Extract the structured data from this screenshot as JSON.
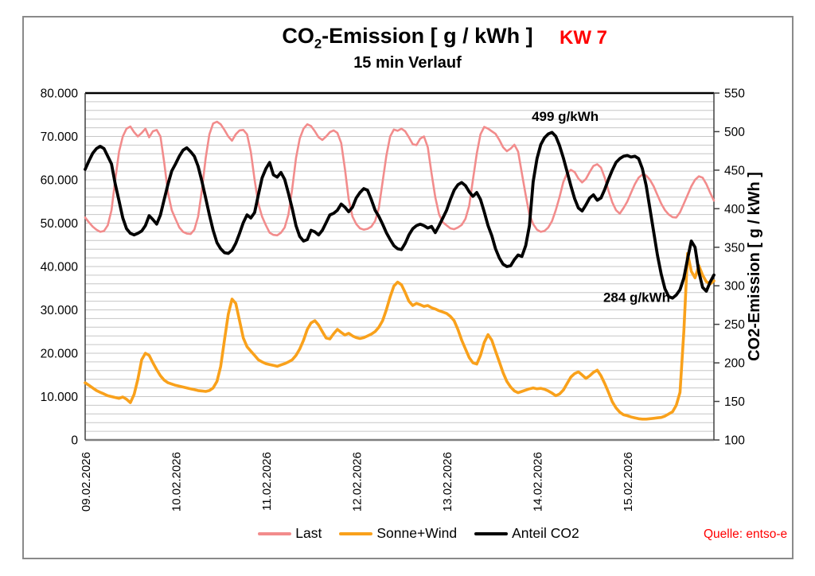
{
  "header": {
    "title_prefix": "CO",
    "title_sub": "2",
    "title_suffix": "-Emission [ g / kWh ]",
    "kw_label": "KW 7",
    "subtitle": "15 min Verlauf"
  },
  "source": "Quelle: entso-e",
  "colors": {
    "grid": "#c6c6c6",
    "plot_top_border": "#000000",
    "plot_bottom_axis": "#7f7f7f",
    "plot_side_axis": "#404040",
    "kw_text": "#ff0000",
    "source_text": "#ff0000"
  },
  "chart_data": {
    "type": "line",
    "note": "Curves digitized from 15-min chart at 1-hour resolution, 168 points per series, 09.02.2026 00:00 - 15.02.2026 24:00",
    "x_tick_labels": [
      "09.02.2026",
      "10.02.2026",
      "11.02.2026",
      "12.02.2026",
      "13.02.2026",
      "14.02.2026",
      "15.02.2026"
    ],
    "left_axis": {
      "min": 0,
      "max": 80000,
      "tick_step": 10000,
      "grid_step": 2000,
      "tick_labels": [
        "0",
        "10.000",
        "20.000",
        "30.000",
        "40.000",
        "50.000",
        "60.000",
        "70.000",
        "80.000"
      ]
    },
    "right_axis": {
      "min": 100,
      "max": 550,
      "tick_step": 50,
      "label": "CO2-Emission [ g / kWh ]"
    },
    "legend_position": "bottom",
    "grid": "horizontal-only",
    "series": [
      {
        "name": "Last",
        "axis": "left",
        "color": "#f28c8c",
        "values": [
          51300,
          50200,
          49200,
          48500,
          48000,
          48200,
          49500,
          53000,
          60000,
          66500,
          70000,
          71800,
          72300,
          71000,
          70000,
          70800,
          71800,
          69800,
          71200,
          71500,
          70000,
          64000,
          57000,
          53000,
          51000,
          49000,
          48000,
          47600,
          47500,
          48500,
          51500,
          57500,
          65000,
          70500,
          73000,
          73400,
          72800,
          71500,
          70000,
          69000,
          70500,
          71400,
          71500,
          70500,
          66500,
          60000,
          54500,
          51500,
          49500,
          47800,
          47300,
          47200,
          47800,
          49000,
          52000,
          58000,
          65000,
          69500,
          71800,
          72800,
          72400,
          71200,
          69800,
          69200,
          70000,
          71000,
          71400,
          70800,
          68500,
          62500,
          55500,
          51500,
          49800,
          48800,
          48500,
          48700,
          49200,
          50500,
          53500,
          59500,
          65500,
          70000,
          71600,
          71300,
          71800,
          71200,
          69800,
          68200,
          68000,
          69500,
          70000,
          67500,
          61500,
          56000,
          52000,
          50200,
          49500,
          48800,
          48600,
          49000,
          49600,
          51000,
          54000,
          60000,
          66000,
          70500,
          72200,
          71800,
          71200,
          70600,
          69200,
          67500,
          66600,
          67200,
          68100,
          66500,
          61500,
          56500,
          52000,
          49800,
          48500,
          48000,
          48200,
          49000,
          50500,
          53000,
          56000,
          59500,
          61500,
          62300,
          61800,
          60300,
          59400,
          60200,
          61800,
          63200,
          63600,
          62800,
          60500,
          57500,
          54800,
          53000,
          52200,
          53500,
          55000,
          57000,
          59000,
          60500,
          61200,
          61000,
          60000,
          58500,
          56500,
          54500,
          53000,
          52000,
          51400,
          51300,
          52500,
          54500,
          56500,
          58500,
          60000,
          60800,
          60500,
          59000,
          57000,
          55200
        ]
      },
      {
        "name": "Sonne+Wind",
        "axis": "left",
        "color": "#f9a11b",
        "values": [
          13200,
          12600,
          12000,
          11400,
          11000,
          10600,
          10200,
          10000,
          9800,
          9600,
          9900,
          9400,
          8600,
          10500,
          14000,
          18500,
          20000,
          19500,
          17800,
          16200,
          14800,
          13800,
          13200,
          12900,
          12600,
          12400,
          12200,
          12000,
          11800,
          11600,
          11400,
          11300,
          11200,
          11400,
          12000,
          13500,
          17000,
          23000,
          29000,
          32500,
          31500,
          27500,
          23500,
          21500,
          20500,
          19500,
          18500,
          18000,
          17600,
          17400,
          17200,
          17000,
          17300,
          17600,
          18000,
          18500,
          19500,
          21000,
          23000,
          25500,
          27000,
          27500,
          26500,
          25000,
          23500,
          23300,
          24500,
          25500,
          24800,
          24200,
          24600,
          24000,
          23600,
          23400,
          23600,
          24000,
          24400,
          25000,
          26000,
          27500,
          30000,
          33000,
          35500,
          36400,
          35800,
          34000,
          32000,
          31000,
          31500,
          31200,
          30800,
          31000,
          30500,
          30200,
          29800,
          29500,
          29200,
          28500,
          27500,
          25500,
          23000,
          21000,
          19000,
          17800,
          17500,
          19500,
          22500,
          24300,
          23000,
          20500,
          18000,
          15500,
          13500,
          12200,
          11300,
          10900,
          11200,
          11500,
          11800,
          12000,
          11800,
          11900,
          11700,
          11300,
          10800,
          10200,
          10600,
          11500,
          13000,
          14500,
          15300,
          15700,
          15000,
          14200,
          14800,
          15600,
          16100,
          14800,
          13000,
          11000,
          8800,
          7400,
          6400,
          5800,
          5600,
          5300,
          5100,
          4900,
          4800,
          4800,
          4900,
          5000,
          5100,
          5200,
          5500,
          6000,
          6500,
          8000,
          11000,
          25000,
          43000,
          38900,
          37400,
          40200,
          38000,
          36500,
          36000,
          36700
        ]
      },
      {
        "name": "Anteil CO2",
        "axis": "right",
        "color": "#000000",
        "values": [
          451,
          462,
          472,
          478,
          481,
          478,
          468,
          458,
          432,
          410,
          388,
          374,
          368,
          366,
          368,
          371,
          378,
          391,
          386,
          380,
          392,
          412,
          432,
          449,
          458,
          468,
          476,
          479,
          474,
          468,
          455,
          436,
          414,
          392,
          372,
          356,
          348,
          343,
          342,
          346,
          355,
          368,
          382,
          392,
          388,
          395,
          418,
          440,
          452,
          460,
          444,
          441,
          447,
          438,
          420,
          400,
          378,
          364,
          358,
          360,
          372,
          370,
          366,
          372,
          382,
          392,
          394,
          398,
          406,
          402,
          396,
          402,
          414,
          421,
          426,
          424,
          412,
          398,
          390,
          380,
          369,
          360,
          352,
          348,
          347,
          355,
          366,
          374,
          378,
          380,
          378,
          375,
          377,
          369,
          378,
          388,
          398,
          412,
          424,
          431,
          434,
          430,
          422,
          416,
          421,
          412,
          396,
          378,
          365,
          348,
          336,
          328,
          325,
          326,
          334,
          340,
          338,
          352,
          378,
          435,
          465,
          483,
          492,
          497,
          499,
          494,
          482,
          466,
          448,
          430,
          413,
          401,
          397,
          405,
          414,
          418,
          411,
          414,
          425,
          438,
          450,
          460,
          465,
          468,
          469,
          467,
          468,
          465,
          452,
          430,
          400,
          370,
          340,
          315,
          296,
          286,
          284,
          288,
          295,
          310,
          335,
          358,
          350,
          318,
          298,
          293,
          305,
          314
        ]
      }
    ],
    "annotations": [
      {
        "text": "499 g/kWh",
        "hour": 127.5,
        "value": 514,
        "anchor": "middle"
      },
      {
        "text": "284 g/kWh",
        "hour": 146.5,
        "value": 279,
        "anchor": "middle"
      }
    ]
  },
  "legend": {
    "items": [
      {
        "label": "Last"
      },
      {
        "label": "Sonne+Wind"
      },
      {
        "label": "Anteil CO2"
      }
    ]
  }
}
